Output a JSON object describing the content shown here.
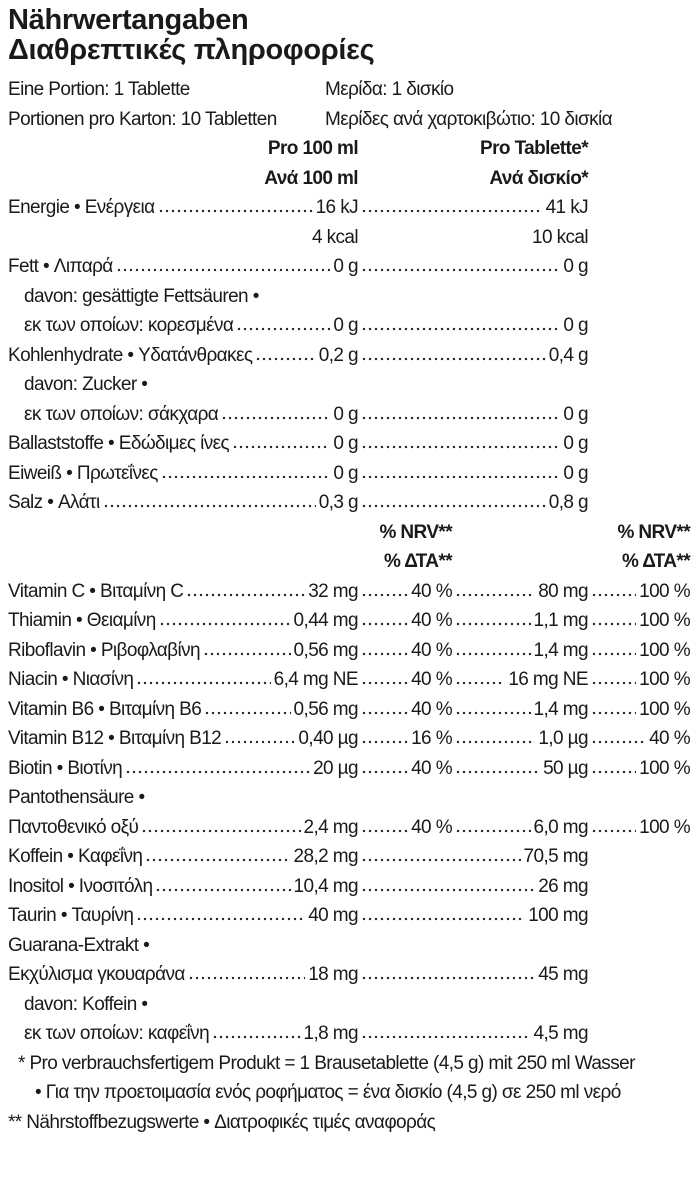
{
  "title": [
    "Nährwertangaben",
    "Διαθρεπτικές πληροφορίες"
  ],
  "serving": [
    [
      "Eine Portion: 1 Tablette",
      "Μερίδα: 1 δισκίο"
    ],
    [
      "Portionen pro Karton: 10 Tabletten",
      "Μερίδες ανά χαρτοκιβώτιο: 10 δισκία"
    ]
  ],
  "table": {
    "header": [
      [
        "Pro 100 ml",
        "Pro Tablette*"
      ],
      [
        "Ανά 100 ml",
        "Ανά δισκίο*"
      ]
    ],
    "rows": [
      {
        "label": "Energie • Ενέργεια",
        "per100": "16 kJ",
        "perTablet": "41 kJ"
      },
      {
        "label": null,
        "per100": "4 kcal",
        "perTablet": "10 kcal"
      },
      {
        "label": "Fett • Λιπαρά",
        "per100": "0 g",
        "perTablet": "0 g"
      },
      {
        "label": "davon: gesättigte Fettsäuren •"
      },
      {
        "label": "εκ των οποίων: κορεσμένα",
        "per100": "0 g",
        "perTablet": "0 g"
      },
      {
        "label": "Kohlenhydrate • Υδατάνθρακες",
        "per100": "0,2 g",
        "perTablet": "0,4 g"
      },
      {
        "label": "davon: Zucker •"
      },
      {
        "label": "εκ των οποίων: σάκχαρα",
        "per100": "0 g",
        "perTablet": "0 g"
      },
      {
        "label": "Ballaststoffe • Εδώδιμες ίνες",
        "per100": "0 g",
        "perTablet": "0 g"
      },
      {
        "label": "Eiweiß • Πρωτεΐνες",
        "per100": "0 g",
        "perTablet": "0 g"
      },
      {
        "label": "Salz • Αλάτι",
        "per100": "0,3 g",
        "perTablet": "0,8 g"
      }
    ],
    "nrv_header": [
      [
        "% NRV**",
        "% NRV**"
      ],
      [
        "% ΔΤΑ**",
        "% ΔΤΑ**"
      ]
    ],
    "vitamins": [
      {
        "label": "Vitamin C • Βιταμίνη C",
        "per100": "32 mg",
        "nrv100": "40 %",
        "perTablet": "80 mg",
        "nrvTablet": "100 %"
      },
      {
        "label": "Thiamin • Θειαμίνη",
        "per100": "0,44 mg",
        "nrv100": "40 %",
        "perTablet": "1,1 mg",
        "nrvTablet": "100 %"
      },
      {
        "label": "Riboflavin • Ριβοφλαβίνη",
        "per100": "0,56 mg",
        "nrv100": "40 %",
        "perTablet": "1,4 mg",
        "nrvTablet": "100 %"
      },
      {
        "label": "Niacin • Νιασίνη",
        "per100": "6,4 mg NE",
        "nrv100": "40 %",
        "perTablet": "16 mg NE",
        "nrvTablet": "100 %"
      },
      {
        "label": "Vitamin B6 • Βιταμίνη B6",
        "per100": "0,56 mg",
        "nrv100": "40 %",
        "perTablet": "1,4 mg",
        "nrvTablet": "100 %"
      },
      {
        "label": "Vitamin B12 • Βιταμίνη B12",
        "per100": "0,40 µg",
        "nrv100": "16 %",
        "perTablet": "1,0 µg",
        "nrvTablet": "40 %"
      },
      {
        "label": "Biotin • Βιοτίνη",
        "per100": "20 µg",
        "nrv100": "40 %",
        "perTablet": "50 µg",
        "nrvTablet": "100 %"
      },
      {
        "label": "Pantothensäure •"
      },
      {
        "label": "Παντοθενικό οξύ",
        "per100": "2,4 mg",
        "nrv100": "40 %",
        "perTablet": "6,0 mg",
        "nrvTablet": "100 %"
      },
      {
        "label": "Koffein • Καφεΐνη",
        "per100": "28,2 mg",
        "perTablet": "70,5 mg"
      },
      {
        "label": "Inositol • Ινοσιτόλη",
        "per100": "10,4 mg",
        "perTablet": "26 mg"
      },
      {
        "label": "Taurin • Ταυρίνη",
        "per100": "40 mg",
        "perTablet": "100 mg"
      },
      {
        "label": "Guarana-Extrakt •"
      },
      {
        "label": "Εκχύλισμα γκουαράνα",
        "per100": "18 mg",
        "perTablet": "45 mg"
      },
      {
        "label": "davon: Koffein •"
      },
      {
        "label": "εκ των οποίων: καφεΐνη",
        "per100": "1,8 mg",
        "perTablet": "4,5 mg"
      }
    ]
  },
  "footnotes": [
    "* Pro verbrauchsfertigem Produkt = 1 Brausetablette (4,5 g) mit 250 ml Wasser",
    "• Για την προετοιμασία ενός ροφήματος = ένα δισκίο (4,5 g) σε 250 ml νερό",
    "** Nährstoffbezugswerte • Διατροφικές τιμές αναφοράς"
  ]
}
